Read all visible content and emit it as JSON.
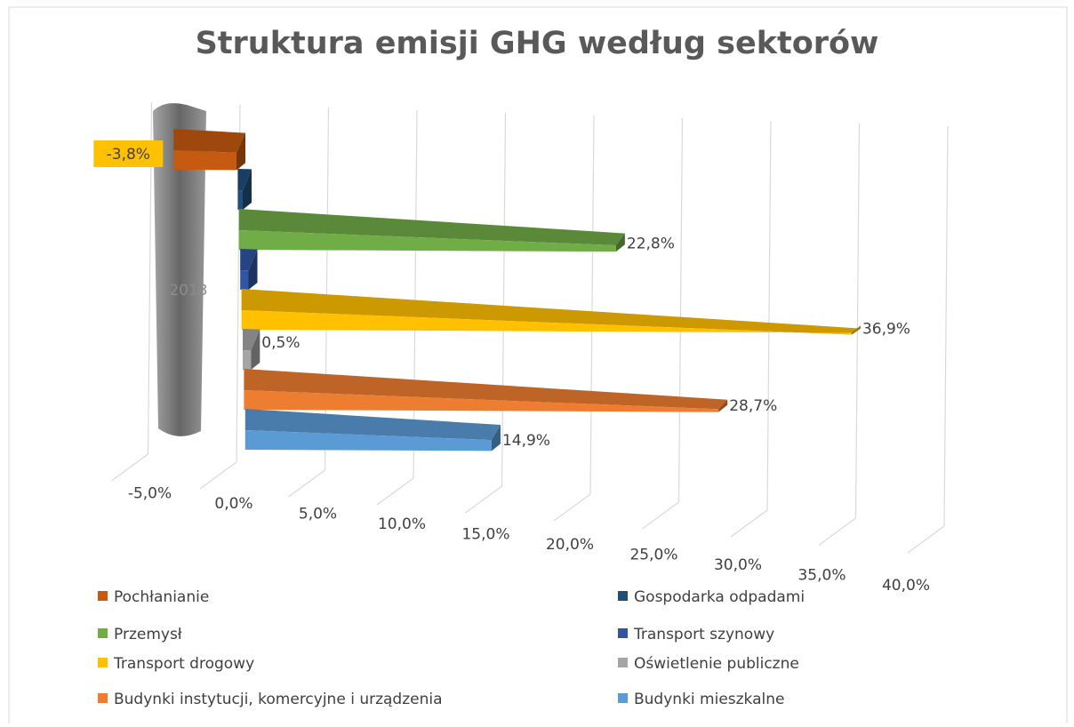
{
  "chart_data": {
    "type": "bar3d",
    "title": "Struktura emisji GHG według sektorów",
    "categories": [
      "2013"
    ],
    "orientation": "horizontal",
    "series": [
      {
        "name": "Pochłanianie",
        "color": "#c55a11",
        "values": [
          -3.8
        ],
        "value_labels": [
          "-3,8%"
        ]
      },
      {
        "name": "Gospodarka odpadami",
        "color": "#1f4e79",
        "values": [
          0.3
        ]
      },
      {
        "name": "Przemysł",
        "color": "#70ad47",
        "values": [
          22.8
        ],
        "value_labels": [
          "22,8%"
        ]
      },
      {
        "name": "Transport szynowy",
        "color": "#2f55a4",
        "values": [
          0.5
        ]
      },
      {
        "name": "Transport drogowy",
        "color": "#ffc000",
        "values": [
          36.9
        ],
        "value_labels": [
          "36,9%"
        ]
      },
      {
        "name": "Oświetlenie publiczne",
        "color": "#a5a5a5",
        "values": [
          0.5
        ],
        "value_labels": [
          "0,5%"
        ]
      },
      {
        "name": "Budynki instytucji, komercyjne i urządzenia",
        "color": "#ed7d31",
        "values": [
          28.7
        ],
        "value_labels": [
          "28,7%"
        ]
      },
      {
        "name": "Budynki mieszkalne",
        "color": "#5b9bd5",
        "values": [
          14.9
        ],
        "value_labels": [
          "14,9%"
        ]
      }
    ],
    "xlim": [
      -5,
      40
    ],
    "xticks": [
      {
        "value": -5,
        "label": "-5,0%"
      },
      {
        "value": 0,
        "label": "0,0%"
      },
      {
        "value": 5,
        "label": "5,0%"
      },
      {
        "value": 10,
        "label": "10,0%"
      },
      {
        "value": 15,
        "label": "15,0%"
      },
      {
        "value": 20,
        "label": "20,0%"
      },
      {
        "value": 25,
        "label": "25,0%"
      },
      {
        "value": 30,
        "label": "30,0%"
      },
      {
        "value": 35,
        "label": "35,0%"
      },
      {
        "value": 40,
        "label": "40,0%"
      }
    ],
    "grid": true,
    "legend": "bottom"
  }
}
